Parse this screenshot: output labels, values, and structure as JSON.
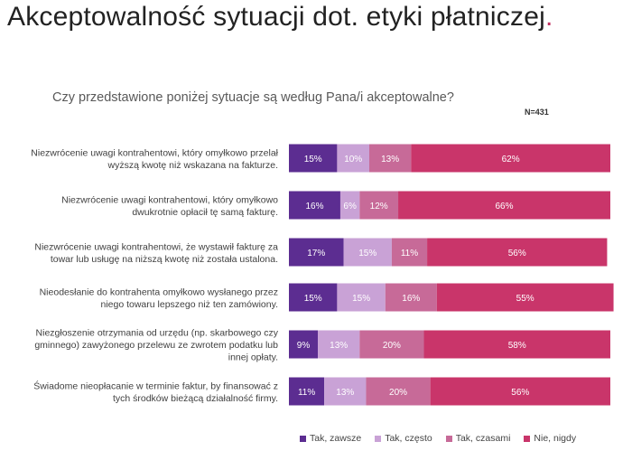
{
  "page": {
    "title": "Akceptowalność sytuacji dot. etyki płatniczej",
    "title_dot": ".",
    "subtitle": "Czy przedstawione poniżej sytuacje są według Pana/i akceptowalne?",
    "n_label": "N=431"
  },
  "chart_data": {
    "type": "bar",
    "orientation": "horizontal",
    "stacked": true,
    "normalized": true,
    "categories": [
      "Niezwrócenie uwagi kontrahentowi, który omyłkowo przelał wyższą kwotę niż wskazana na fakturze.",
      "Niezwrócenie uwagi kontrahentowi, który omyłkowo dwukrotnie opłacił tę samą fakturę.",
      "Niezwrócenie uwagi kontrahentowi, że wystawił fakturę za towar lub usługę na niższą kwotę niż została ustalona.",
      "Nieodesłanie do kontrahenta omyłkowo wysłanego przez niego towaru lepszego niż ten zamówiony.",
      "Niezgłoszenie otrzymania od urzędu (np. skarbowego czy gminnego) zawyżonego przelewu ze zwrotem podatku lub innej opłaty.",
      "Świadome nieopłacanie w terminie faktur, by finansować z tych środków bieżącą działalność firmy."
    ],
    "category_lines": [
      [
        "Niezwrócenie uwagi kontrahentowi, który omyłkowo przelał",
        "wyższą kwotę niż wskazana na fakturze."
      ],
      [
        "Niezwrócenie uwagi kontrahentowi, który omyłkowo",
        "dwukrotnie opłacił tę samą fakturę."
      ],
      [
        "Niezwrócenie uwagi kontrahentowi, że wystawił fakturę za",
        "towar lub usługę na niższą kwotę niż została ustalona."
      ],
      [
        "Nieodesłanie do kontrahenta omyłkowo wysłanego przez",
        "niego towaru lepszego niż ten zamówiony."
      ],
      [
        "Niezgłoszenie otrzymania od urzędu (np. skarbowego czy",
        "gminnego) zawyżonego przelewu ze zwrotem podatku lub",
        "innej opłaty."
      ],
      [
        "Świadome nieopłacanie w terminie faktur, by finansować z",
        "tych środków bieżącą działalność firmy."
      ]
    ],
    "series": [
      {
        "name": "Tak, zawsze",
        "color": "#5c2d91",
        "values": [
          15,
          16,
          17,
          15,
          9,
          11
        ]
      },
      {
        "name": "Tak, często",
        "color": "#c9a2d6",
        "values": [
          10,
          6,
          15,
          15,
          13,
          13
        ]
      },
      {
        "name": "Tak, czasami",
        "color": "#c76a98",
        "values": [
          13,
          12,
          11,
          16,
          20,
          20
        ]
      },
      {
        "name": "Nie, nigdy",
        "color": "#c9356a",
        "values": [
          62,
          66,
          56,
          55,
          58,
          56
        ]
      }
    ],
    "value_format": "{v}%",
    "xlim": [
      0,
      100
    ],
    "legend_position": "bottom",
    "grid": false
  }
}
